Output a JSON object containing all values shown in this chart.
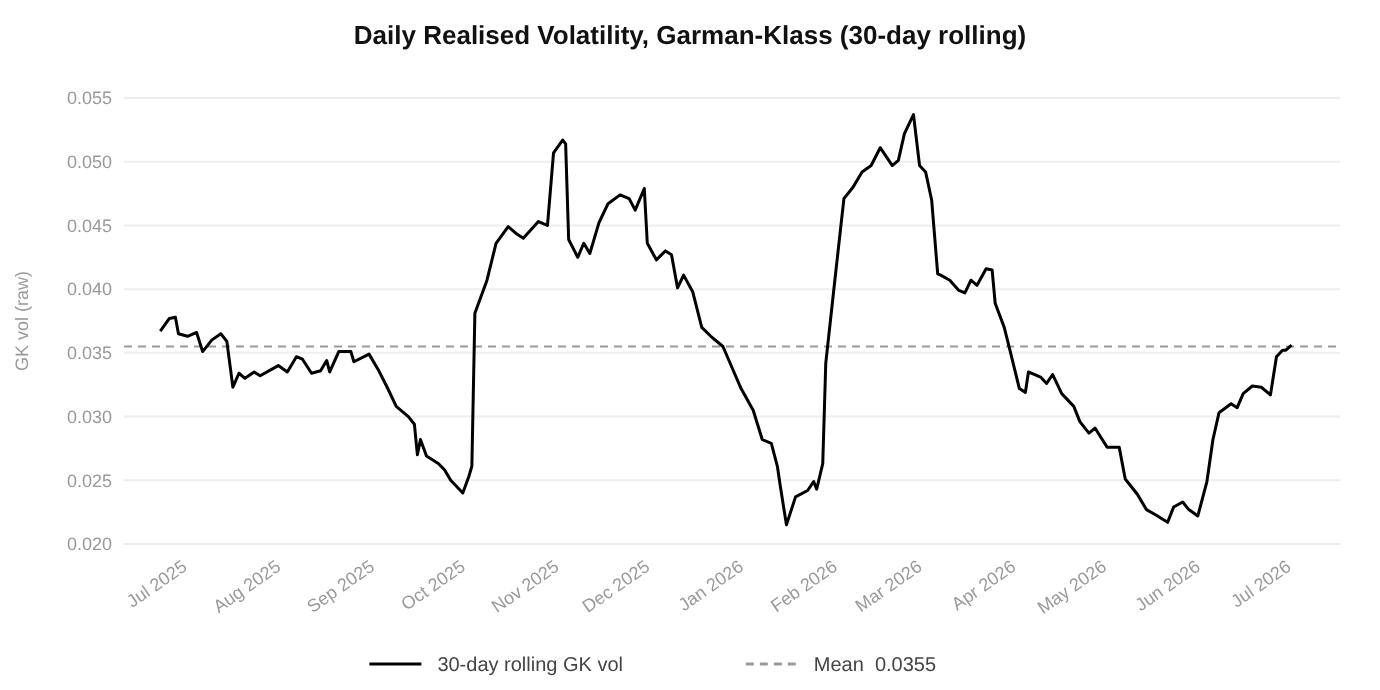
{
  "chart_data": {
    "type": "line",
    "title": "Daily Realised Volatility, Garman-Klass  (30-day rolling)",
    "ylabel": "GK vol (raw)",
    "x": [
      "2025-06-23",
      "2025-06-26",
      "2025-06-28",
      "2025-06-29",
      "2025-07-02",
      "2025-07-05",
      "2025-07-07",
      "2025-07-10",
      "2025-07-13",
      "2025-07-15",
      "2025-07-17",
      "2025-07-19",
      "2025-07-21",
      "2025-07-24",
      "2025-07-26",
      "2025-08-01",
      "2025-08-04",
      "2025-08-07",
      "2025-08-09",
      "2025-08-12",
      "2025-08-15",
      "2025-08-17",
      "2025-08-18",
      "2025-08-21",
      "2025-08-25",
      "2025-08-26",
      "2025-08-31",
      "2025-09-03",
      "2025-09-06",
      "2025-09-09",
      "2025-09-13",
      "2025-09-15",
      "2025-09-16",
      "2025-09-17",
      "2025-09-19",
      "2025-09-23",
      "2025-09-25",
      "2025-09-27",
      "2025-10-01",
      "2025-10-03",
      "2025-10-04",
      "2025-10-05",
      "2025-10-09",
      "2025-10-12",
      "2025-10-16",
      "2025-10-19",
      "2025-10-21",
      "2025-10-26",
      "2025-10-29",
      "2025-10-31",
      "2025-11-03",
      "2025-11-04",
      "2025-11-05",
      "2025-11-08",
      "2025-11-10",
      "2025-11-12",
      "2025-11-15",
      "2025-11-18",
      "2025-11-22",
      "2025-11-25",
      "2025-11-27",
      "2025-11-30",
      "2025-12-01",
      "2025-12-04",
      "2025-12-07",
      "2025-12-09",
      "2025-12-11",
      "2025-12-13",
      "2025-12-16",
      "2025-12-19",
      "2025-12-22",
      "2025-12-26",
      "2025-12-28",
      "2026-01-01",
      "2026-01-05",
      "2026-01-08",
      "2026-01-11",
      "2026-01-13",
      "2026-01-14",
      "2026-01-16",
      "2026-01-19",
      "2026-01-23",
      "2026-01-25",
      "2026-01-26",
      "2026-01-28",
      "2026-01-29",
      "2026-02-01",
      "2026-02-04",
      "2026-02-07",
      "2026-02-10",
      "2026-02-13",
      "2026-02-16",
      "2026-02-20",
      "2026-02-22",
      "2026-02-24",
      "2026-02-27",
      "2026-03-01",
      "2026-03-03",
      "2026-03-05",
      "2026-03-07",
      "2026-03-08",
      "2026-03-11",
      "2026-03-14",
      "2026-03-16",
      "2026-03-18",
      "2026-03-20",
      "2026-03-23",
      "2026-03-25",
      "2026-03-26",
      "2026-03-29",
      "2026-03-31",
      "2026-04-03",
      "2026-04-05",
      "2026-04-06",
      "2026-04-10",
      "2026-04-12",
      "2026-04-14",
      "2026-04-17",
      "2026-04-21",
      "2026-04-23",
      "2026-04-26",
      "2026-04-28",
      "2026-05-02",
      "2026-05-06",
      "2026-05-08",
      "2026-05-12",
      "2026-05-15",
      "2026-05-18",
      "2026-05-22",
      "2026-05-24",
      "2026-05-27",
      "2026-05-29",
      "2026-06-01",
      "2026-06-04",
      "2026-06-06",
      "2026-06-08",
      "2026-06-12",
      "2026-06-14",
      "2026-06-16",
      "2026-06-19",
      "2026-06-22",
      "2026-06-25",
      "2026-06-27",
      "2026-06-29",
      "2026-06-30",
      "2026-07-02"
    ],
    "series": [
      {
        "name": "30-day rolling GK vol",
        "color": "#000000",
        "values": [
          0.0367,
          0.0377,
          0.0378,
          0.0365,
          0.0363,
          0.0366,
          0.0351,
          0.036,
          0.0365,
          0.0359,
          0.0323,
          0.0334,
          0.033,
          0.0335,
          0.0332,
          0.034,
          0.0335,
          0.0347,
          0.0345,
          0.0334,
          0.0336,
          0.0344,
          0.0335,
          0.0351,
          0.0351,
          0.0343,
          0.0349,
          0.0337,
          0.0323,
          0.0308,
          0.03,
          0.0294,
          0.027,
          0.0282,
          0.0269,
          0.0263,
          0.0258,
          0.025,
          0.024,
          0.0253,
          0.0261,
          0.0381,
          0.0407,
          0.0436,
          0.0449,
          0.0443,
          0.044,
          0.0453,
          0.045,
          0.0507,
          0.0517,
          0.0514,
          0.0439,
          0.0425,
          0.0436,
          0.0428,
          0.0452,
          0.0467,
          0.0474,
          0.0471,
          0.0462,
          0.0479,
          0.0436,
          0.0423,
          0.043,
          0.0427,
          0.0401,
          0.0411,
          0.0398,
          0.037,
          0.0363,
          0.0355,
          0.0344,
          0.0322,
          0.0305,
          0.0282,
          0.0279,
          0.0261,
          0.0245,
          0.0215,
          0.0237,
          0.0242,
          0.0249,
          0.0243,
          0.0263,
          0.0342,
          0.0407,
          0.0471,
          0.048,
          0.0492,
          0.0497,
          0.0511,
          0.0497,
          0.0501,
          0.0522,
          0.0537,
          0.0497,
          0.0492,
          0.047,
          0.0412,
          0.0411,
          0.0407,
          0.0399,
          0.0397,
          0.0407,
          0.0403,
          0.0416,
          0.0415,
          0.0389,
          0.037,
          0.0351,
          0.0322,
          0.0319,
          0.0335,
          0.0331,
          0.0326,
          0.0333,
          0.0318,
          0.0308,
          0.0296,
          0.0287,
          0.0291,
          0.0276,
          0.0276,
          0.0251,
          0.0239,
          0.0227,
          0.0223,
          0.0217,
          0.0229,
          0.0233,
          0.0227,
          0.0222,
          0.0249,
          0.0282,
          0.0303,
          0.031,
          0.0307,
          0.0318,
          0.0324,
          0.0323,
          0.0317,
          0.0347,
          0.0352,
          0.0352,
          0.0356
        ]
      }
    ],
    "xlim": [
      "2025-06-11",
      "2026-07-18"
    ],
    "xticks": [
      {
        "value": "2025-07",
        "label": "Jul 2025"
      },
      {
        "value": "2025-08",
        "label": "Aug 2025"
      },
      {
        "value": "2025-09",
        "label": "Sep 2025"
      },
      {
        "value": "2025-10",
        "label": "Oct 2025"
      },
      {
        "value": "2025-11",
        "label": "Nov 2025"
      },
      {
        "value": "2025-12",
        "label": "Dec 2025"
      },
      {
        "value": "2026-01",
        "label": "Jan 2026"
      },
      {
        "value": "2026-02",
        "label": "Feb 2026"
      },
      {
        "value": "2026-03",
        "label": "Mar 2026"
      },
      {
        "value": "2026-04",
        "label": "Apr 2026"
      },
      {
        "value": "2026-05",
        "label": "May 2026"
      },
      {
        "value": "2026-06",
        "label": "Jun 2026"
      },
      {
        "value": "2026-07",
        "label": "Jul 2026"
      }
    ],
    "ylim": [
      0.02,
      0.055
    ],
    "yticks": [
      {
        "value": 0.02,
        "label": "0.020"
      },
      {
        "value": 0.025,
        "label": "0.025"
      },
      {
        "value": 0.03,
        "label": "0.030"
      },
      {
        "value": 0.035,
        "label": "0.035"
      },
      {
        "value": 0.04,
        "label": "0.040"
      },
      {
        "value": 0.045,
        "label": "0.045"
      },
      {
        "value": 0.05,
        "label": "0.050"
      },
      {
        "value": 0.055,
        "label": "0.055"
      }
    ],
    "ref_lines": [
      {
        "axis": "y",
        "value": 0.0355,
        "label": "Mean  0.0355",
        "color": "#999999",
        "line_style": "dashed"
      }
    ],
    "grid": "y",
    "legend": "bottom",
    "line_style": "solid",
    "marker": "none"
  }
}
